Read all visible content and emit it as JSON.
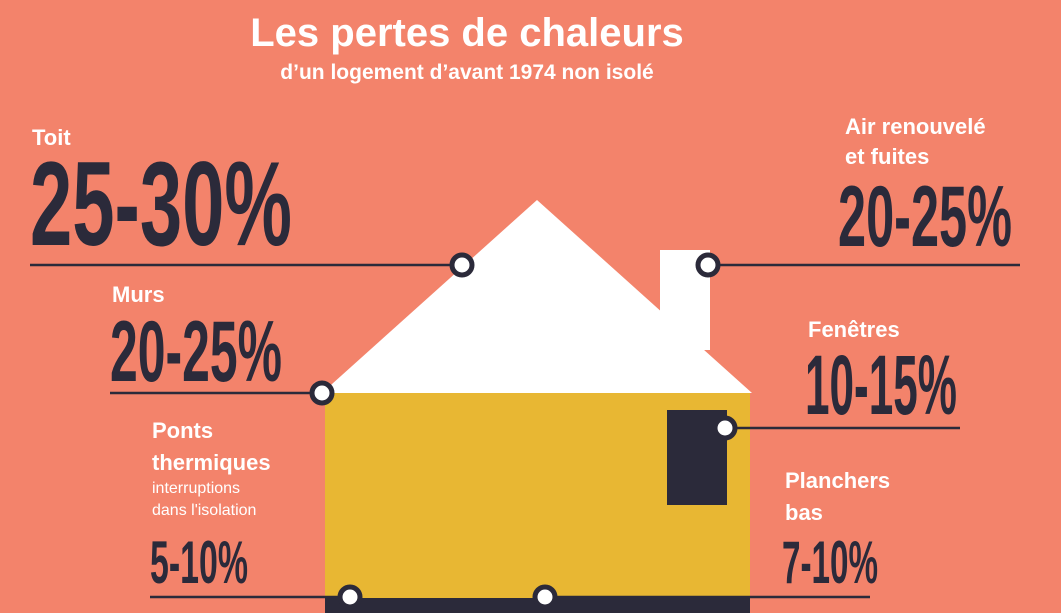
{
  "header": {
    "title": "Les pertes de chaleurs",
    "subtitle": "d’un logement d’avant 1974 non isolé"
  },
  "items": [
    {
      "label": [
        "Toit"
      ],
      "value": "25-30%"
    },
    {
      "label": [
        "Air renouvelé",
        "et fuites"
      ],
      "value": "20-25%"
    },
    {
      "label": [
        "Murs"
      ],
      "value": "20-25%"
    },
    {
      "label": [
        "Fenêtres"
      ],
      "value": "10-15%"
    },
    {
      "label": [
        "Ponts",
        "thermiques"
      ],
      "note": [
        "interruptions",
        "dans l'isolation"
      ],
      "value": "5-10%"
    },
    {
      "label": [
        "Planchers",
        "bas"
      ],
      "value": "7-10%"
    }
  ]
}
